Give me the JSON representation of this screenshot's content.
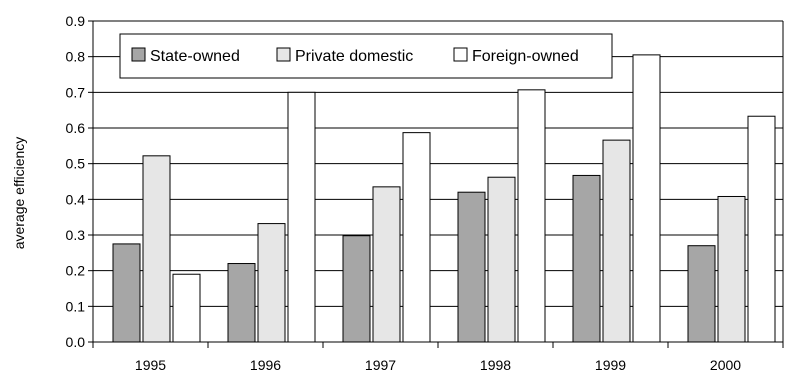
{
  "chart_data": {
    "type": "bar",
    "title": "",
    "xlabel": "",
    "ylabel": "average efficiency",
    "ylim": [
      0,
      0.9
    ],
    "yticks": [
      "0.0",
      "0.1",
      "0.2",
      "0.3",
      "0.4",
      "0.5",
      "0.6",
      "0.7",
      "0.8",
      "0.9"
    ],
    "grid": true,
    "legend_position": "top-left",
    "categories": [
      "1995",
      "1996",
      "1997",
      "1998",
      "1999",
      "2000"
    ],
    "series": [
      {
        "name": "State-owned",
        "color": "#a6a6a6",
        "values": [
          0.275,
          0.22,
          0.298,
          0.42,
          0.467,
          0.27
        ]
      },
      {
        "name": "Private domestic",
        "color": "#e6e6e6",
        "values": [
          0.522,
          0.332,
          0.435,
          0.462,
          0.566,
          0.408
        ]
      },
      {
        "name": "Foreign-owned",
        "color": "#ffffff",
        "values": [
          0.19,
          0.7,
          0.587,
          0.707,
          0.805,
          0.633
        ]
      }
    ]
  }
}
